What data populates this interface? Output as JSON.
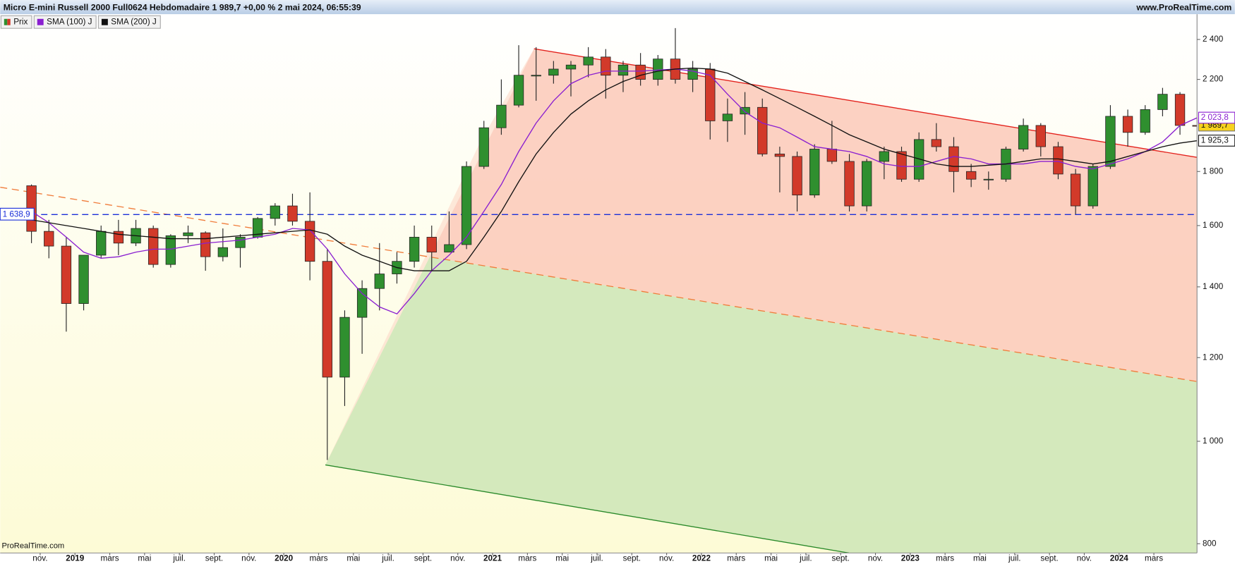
{
  "chart_data": {
    "type": "candlestick",
    "title": "Micro E-mini Russell 2000 Full0624 Hebdomadaire 1 989,7 +0,00 % 2 mai 2024, 06:55:39",
    "source": "www.ProRealTime.com",
    "watermark": "ProRealTime.com",
    "log_scale": true,
    "grid": false,
    "legend": "top-left",
    "ylim": [
      784,
      2536
    ],
    "yticks": [
      {
        "value": 800,
        "label": "800"
      },
      {
        "value": 1000,
        "label": "1 000"
      },
      {
        "value": 1200,
        "label": "1 200"
      },
      {
        "value": 1400,
        "label": "1 400"
      },
      {
        "value": 1600,
        "label": "1 600"
      },
      {
        "value": 1800,
        "label": "1 800"
      },
      {
        "value": 2200,
        "label": "2 200"
      },
      {
        "value": 2400,
        "label": "2 400"
      }
    ],
    "xticks": [
      {
        "value": "2018-11",
        "label": "nov."
      },
      {
        "value": "2019-01",
        "label": "2019"
      },
      {
        "value": "2019-03",
        "label": "mars"
      },
      {
        "value": "2019-05",
        "label": "mai"
      },
      {
        "value": "2019-07",
        "label": "juil."
      },
      {
        "value": "2019-09",
        "label": "sept."
      },
      {
        "value": "2019-11",
        "label": "nov."
      },
      {
        "value": "2020-01",
        "label": "2020"
      },
      {
        "value": "2020-03",
        "label": "mars"
      },
      {
        "value": "2020-05",
        "label": "mai"
      },
      {
        "value": "2020-07",
        "label": "juil."
      },
      {
        "value": "2020-09",
        "label": "sept."
      },
      {
        "value": "2020-11",
        "label": "nov."
      },
      {
        "value": "2021-01",
        "label": "2021"
      },
      {
        "value": "2021-03",
        "label": "mars"
      },
      {
        "value": "2021-05",
        "label": "mai"
      },
      {
        "value": "2021-07",
        "label": "juil."
      },
      {
        "value": "2021-09",
        "label": "sept."
      },
      {
        "value": "2021-11",
        "label": "nov."
      },
      {
        "value": "2022-01",
        "label": "2022"
      },
      {
        "value": "2022-03",
        "label": "mars"
      },
      {
        "value": "2022-05",
        "label": "mai"
      },
      {
        "value": "2022-07",
        "label": "juil."
      },
      {
        "value": "2022-09",
        "label": "sept."
      },
      {
        "value": "2022-11",
        "label": "nov."
      },
      {
        "value": "2023-01",
        "label": "2023"
      },
      {
        "value": "2023-03",
        "label": "mars"
      },
      {
        "value": "2023-05",
        "label": "mai"
      },
      {
        "value": "2023-07",
        "label": "juil."
      },
      {
        "value": "2023-09",
        "label": "sept."
      },
      {
        "value": "2023-11",
        "label": "nov."
      },
      {
        "value": "2024-01",
        "label": "2024"
      },
      {
        "value": "2024-03",
        "label": "mars"
      }
    ],
    "x": [
      "2018-10",
      "2018-11",
      "2018-12",
      "2019-01",
      "2019-02",
      "2019-03",
      "2019-04",
      "2019-05",
      "2019-06",
      "2019-07",
      "2019-08",
      "2019-09",
      "2019-10",
      "2019-11",
      "2019-12",
      "2020-01",
      "2020-02",
      "2020-03",
      "2020-04",
      "2020-05",
      "2020-06",
      "2020-07",
      "2020-08",
      "2020-09",
      "2020-10",
      "2020-11",
      "2020-12",
      "2021-01",
      "2021-02",
      "2021-03",
      "2021-04",
      "2021-05",
      "2021-06",
      "2021-07",
      "2021-08",
      "2021-09",
      "2021-10",
      "2021-11",
      "2021-12",
      "2022-01",
      "2022-02",
      "2022-03",
      "2022-04",
      "2022-05",
      "2022-06",
      "2022-07",
      "2022-08",
      "2022-09",
      "2022-10",
      "2022-11",
      "2022-12",
      "2023-01",
      "2023-02",
      "2023-03",
      "2023-04",
      "2023-05",
      "2023-06",
      "2023-07",
      "2023-08",
      "2023-09",
      "2023-10",
      "2023-11",
      "2023-12",
      "2024-01",
      "2024-02",
      "2024-03",
      "2024-04",
      "2024-05"
    ],
    "series": [
      {
        "name": "Prix",
        "up_color": "#2f8f2f",
        "down_color": "#d23a2a",
        "last_label": "1 989,7",
        "open": [
          1745,
          1580,
          1530,
          1350,
          1500,
          1580,
          1540,
          1590,
          1470,
          1565,
          1575,
          1495,
          1525,
          1560,
          1625,
          1670,
          1615,
          1480,
          1150,
          1310,
          1395,
          1440,
          1480,
          1560,
          1510,
          1535,
          1820,
          1980,
          2080,
          2220,
          2220,
          2250,
          2270,
          2310,
          2220,
          2270,
          2200,
          2300,
          2200,
          2250,
          2010,
          2040,
          2070,
          1870,
          1860,
          1710,
          1890,
          1840,
          1670,
          1840,
          1880,
          1770,
          1930,
          1900,
          1800,
          1770,
          1770,
          1890,
          1990,
          1900,
          1790,
          1670,
          1820,
          2030,
          1960,
          2060,
          2130,
          1990
        ],
        "high": [
          1750,
          1620,
          1560,
          1500,
          1600,
          1620,
          1620,
          1600,
          1570,
          1600,
          1580,
          1590,
          1570,
          1630,
          1680,
          1715,
          1720,
          1520,
          1330,
          1420,
          1540,
          1510,
          1600,
          1600,
          1650,
          1840,
          2010,
          2200,
          2370,
          2360,
          2290,
          2290,
          2360,
          2350,
          2290,
          2330,
          2320,
          2460,
          2290,
          2280,
          2110,
          2140,
          2110,
          1900,
          1880,
          1910,
          2010,
          1870,
          1850,
          1900,
          1900,
          1960,
          2000,
          1940,
          1830,
          1800,
          1900,
          2020,
          2000,
          1920,
          1810,
          1830,
          2080,
          2060,
          2080,
          2160,
          2140,
          2010
        ],
        "low": [
          1540,
          1490,
          1270,
          1330,
          1490,
          1500,
          1530,
          1460,
          1460,
          1540,
          1450,
          1480,
          1460,
          1555,
          1600,
          1600,
          1420,
          960,
          1080,
          1210,
          1330,
          1410,
          1460,
          1450,
          1510,
          1520,
          1810,
          1950,
          2070,
          2100,
          2180,
          2120,
          2210,
          2110,
          2140,
          2170,
          2170,
          2180,
          2140,
          1930,
          1920,
          1950,
          1860,
          1720,
          1650,
          1700,
          1830,
          1650,
          1650,
          1770,
          1760,
          1760,
          1880,
          1720,
          1740,
          1730,
          1760,
          1880,
          1860,
          1770,
          1640,
          1660,
          1810,
          1900,
          1950,
          2030,
          1950,
          1970
        ],
        "close": [
          1580,
          1530,
          1350,
          1500,
          1580,
          1540,
          1590,
          1470,
          1565,
          1575,
          1495,
          1525,
          1560,
          1625,
          1670,
          1615,
          1480,
          1150,
          1310,
          1395,
          1440,
          1480,
          1560,
          1510,
          1535,
          1820,
          1980,
          2080,
          2220,
          2220,
          2250,
          2270,
          2310,
          2220,
          2270,
          2200,
          2300,
          2200,
          2250,
          2010,
          2040,
          2070,
          1870,
          1860,
          1710,
          1890,
          1840,
          1670,
          1840,
          1880,
          1770,
          1930,
          1900,
          1800,
          1770,
          1770,
          1890,
          1990,
          1900,
          1790,
          1670,
          1820,
          2030,
          1960,
          2060,
          2130,
          1990,
          1989.7
        ]
      },
      {
        "name": "SMA (100) J",
        "color": "#8a1fd0",
        "last_label": "2 023,8",
        "values": [
          1650,
          1610,
          1560,
          1510,
          1490,
          1495,
          1510,
          1520,
          1520,
          1530,
          1540,
          1545,
          1550,
          1560,
          1570,
          1590,
          1585,
          1520,
          1440,
          1380,
          1340,
          1320,
          1380,
          1450,
          1500,
          1560,
          1650,
          1750,
          1880,
          2000,
          2100,
          2180,
          2220,
          2240,
          2240,
          2240,
          2245,
          2250,
          2240,
          2220,
          2130,
          2050,
          2000,
          1980,
          1940,
          1900,
          1890,
          1880,
          1860,
          1830,
          1820,
          1820,
          1840,
          1860,
          1850,
          1830,
          1830,
          1830,
          1840,
          1840,
          1820,
          1810,
          1830,
          1850,
          1880,
          1920,
          1990,
          2023.8
        ]
      },
      {
        "name": "SMA (200) J",
        "color": "#111111",
        "last_label": "1 925,3",
        "values": [
          1620,
          1610,
          1600,
          1590,
          1580,
          1570,
          1565,
          1560,
          1555,
          1555,
          1555,
          1560,
          1565,
          1570,
          1575,
          1580,
          1585,
          1570,
          1530,
          1500,
          1480,
          1460,
          1450,
          1450,
          1450,
          1480,
          1560,
          1650,
          1760,
          1870,
          1960,
          2040,
          2100,
          2150,
          2190,
          2220,
          2240,
          2250,
          2255,
          2250,
          2230,
          2190,
          2150,
          2110,
          2070,
          2030,
          1990,
          1950,
          1920,
          1890,
          1870,
          1850,
          1830,
          1820,
          1820,
          1825,
          1830,
          1840,
          1850,
          1850,
          1840,
          1830,
          1840,
          1860,
          1880,
          1900,
          1915,
          1925.3
        ]
      }
    ],
    "hline": {
      "value": 1638.9,
      "label": "1 638,9",
      "color": "#1a2fd8"
    }
  }
}
